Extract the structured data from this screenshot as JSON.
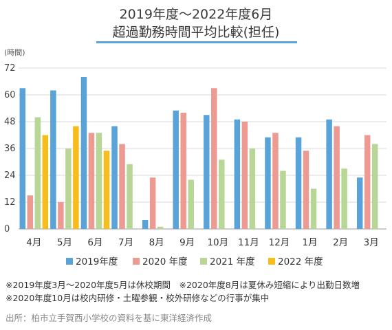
{
  "title_line1": "2019年度～2022年度6月",
  "title_line2": "超過勤務時間平均比較(担任)",
  "notes": [
    "※2019年度3月～2020年度5月は休校期間　※2020年度8月は夏休み短縮により出勤日数増",
    "※2020年度10月は校内研修・土曜参観・校外研修などの行事が集中"
  ],
  "source": "出所：柏市立手賀西小学校の資料を基に東洋経済作成",
  "chart_data": {
    "type": "bar",
    "ylabel": "(時間)",
    "ylim": [
      0,
      72
    ],
    "yticks": [
      0,
      12,
      24,
      36,
      48,
      60,
      72
    ],
    "grid": true,
    "legend_position": "bottom",
    "categories": [
      "4月",
      "5月",
      "6月",
      "7月",
      "8月",
      "9月",
      "10月",
      "11月",
      "12月",
      "1月",
      "2月",
      "3月"
    ],
    "series": [
      {
        "name": "2019年度",
        "color": "#5aa3d8",
        "values": [
          63,
          62,
          68,
          46,
          4,
          53,
          51,
          49,
          41,
          41,
          49,
          23
        ]
      },
      {
        "name": "2020 年度",
        "color": "#ec9a92",
        "values": [
          15,
          12,
          43,
          38,
          23,
          52,
          63,
          48,
          43,
          35,
          46,
          42
        ]
      },
      {
        "name": "2021 年度",
        "color": "#b8d797",
        "values": [
          50,
          36,
          43,
          29,
          1,
          22,
          31,
          36,
          26,
          18,
          27,
          38
        ]
      },
      {
        "name": "2022 年度",
        "color": "#f7bd1d",
        "values": [
          42,
          46,
          35,
          null,
          null,
          null,
          null,
          null,
          null,
          null,
          null,
          null
        ]
      }
    ]
  }
}
